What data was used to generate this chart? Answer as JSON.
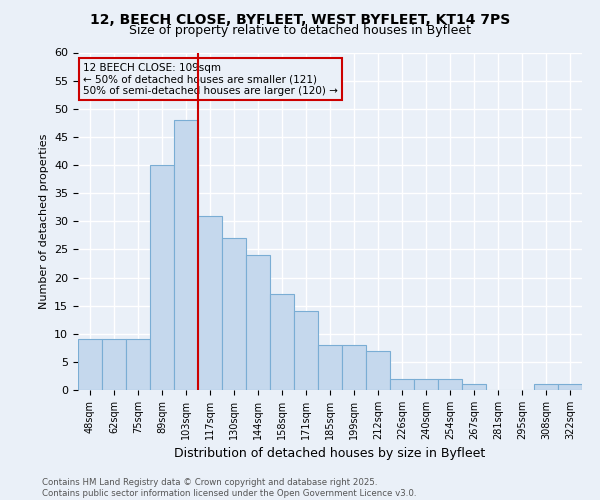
{
  "title_line1": "12, BEECH CLOSE, BYFLEET, WEST BYFLEET, KT14 7PS",
  "title_line2": "Size of property relative to detached houses in Byfleet",
  "categories": [
    "48sqm",
    "62sqm",
    "75sqm",
    "89sqm",
    "103sqm",
    "117sqm",
    "130sqm",
    "144sqm",
    "158sqm",
    "171sqm",
    "185sqm",
    "199sqm",
    "212sqm",
    "226sqm",
    "240sqm",
    "254sqm",
    "267sqm",
    "281sqm",
    "295sqm",
    "308sqm",
    "322sqm"
  ],
  "values": [
    9,
    9,
    9,
    40,
    48,
    31,
    27,
    24,
    17,
    14,
    8,
    8,
    7,
    2,
    2,
    2,
    1,
    0,
    0,
    1,
    1
  ],
  "bar_color": "#c5d8ed",
  "bar_edge_color": "#7aadd4",
  "background_color": "#eaf0f8",
  "grid_color": "#ffffff",
  "vline_index": 4.5,
  "vline_color": "#cc0000",
  "ylabel": "Number of detached properties",
  "xlabel": "Distribution of detached houses by size in Byfleet",
  "ylim": [
    0,
    60
  ],
  "yticks": [
    0,
    5,
    10,
    15,
    20,
    25,
    30,
    35,
    40,
    45,
    50,
    55,
    60
  ],
  "annotation_title": "12 BEECH CLOSE: 109sqm",
  "annotation_line2": "← 50% of detached houses are smaller (121)",
  "annotation_line3": "50% of semi-detached houses are larger (120) →",
  "footer_line1": "Contains HM Land Registry data © Crown copyright and database right 2025.",
  "footer_line2": "Contains public sector information licensed under the Open Government Licence v3.0."
}
